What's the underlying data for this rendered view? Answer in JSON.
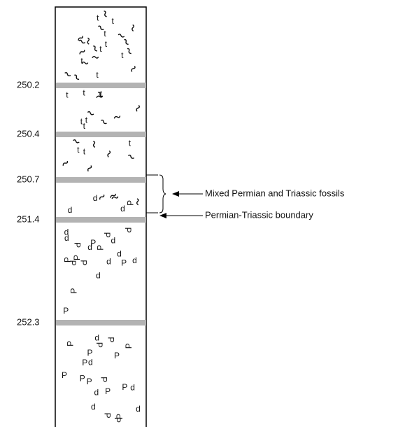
{
  "column": {
    "levels": [
      "250.2",
      "250.4",
      "250.7",
      "251.4",
      "252.3"
    ]
  },
  "annotations": {
    "mixed": "Mixed Permian and Triassic fossils",
    "boundary": "Permian-Triassic boundary"
  },
  "symbols": {
    "triassic": "t",
    "permian": "P",
    "other": "d"
  }
}
